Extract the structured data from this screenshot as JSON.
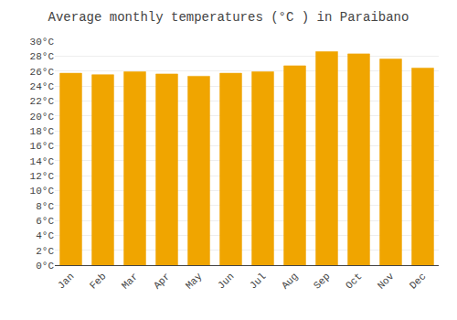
{
  "chart_data": {
    "type": "bar",
    "title": "Average monthly temperatures (°C ) in Paraibano",
    "categories": [
      "Jan",
      "Feb",
      "Mar",
      "Apr",
      "May",
      "Jun",
      "Jul",
      "Aug",
      "Sep",
      "Oct",
      "Nov",
      "Dec"
    ],
    "values": [
      25.7,
      25.5,
      25.9,
      25.6,
      25.3,
      25.7,
      25.9,
      26.7,
      28.6,
      28.3,
      27.6,
      26.4
    ],
    "color": "#F0A500",
    "ylim": [
      0,
      30
    ],
    "yticks": [
      {
        "value": 0,
        "label": "0°C"
      },
      {
        "value": 2,
        "label": "2°C"
      },
      {
        "value": 4,
        "label": "4°C"
      },
      {
        "value": 6,
        "label": "6°C"
      },
      {
        "value": 8,
        "label": "8°C"
      },
      {
        "value": 10,
        "label": "10°C"
      },
      {
        "value": 12,
        "label": "12°C"
      },
      {
        "value": 14,
        "label": "14°C"
      },
      {
        "value": 16,
        "label": "16°C"
      },
      {
        "value": 18,
        "label": "18°C"
      },
      {
        "value": 20,
        "label": "20°C"
      },
      {
        "value": 22,
        "label": "22°C"
      },
      {
        "value": 24,
        "label": "24°C"
      },
      {
        "value": 26,
        "label": "26°C"
      },
      {
        "value": 28,
        "label": "28°C"
      },
      {
        "value": 30,
        "label": "30°C"
      }
    ],
    "grid": true
  }
}
